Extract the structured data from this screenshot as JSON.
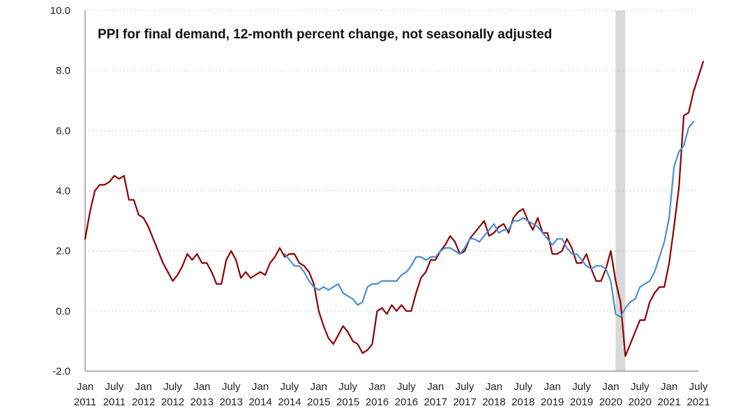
{
  "chart_data": {
    "type": "line",
    "title": "PPI for final demand, 12-month percent change, not seasonally adjusted",
    "xlabel": "",
    "ylabel": "",
    "ylim": [
      -2.0,
      10.0
    ],
    "y_ticks": [
      "-2.0",
      "0.0",
      "2.0",
      "4.0",
      "6.0",
      "8.0",
      "10.0"
    ],
    "x_start": "2011-01",
    "x_end": "2021-07",
    "x_ticks": [
      {
        "month": "2011-01",
        "line1": "Jan",
        "line2": "2011"
      },
      {
        "month": "2011-07",
        "line1": "July",
        "line2": "2011"
      },
      {
        "month": "2012-01",
        "line1": "Jan",
        "line2": "2012"
      },
      {
        "month": "2012-07",
        "line1": "July",
        "line2": "2012"
      },
      {
        "month": "2013-01",
        "line1": "Jan",
        "line2": "2013"
      },
      {
        "month": "2013-07",
        "line1": "July",
        "line2": "2013"
      },
      {
        "month": "2014-01",
        "line1": "Jan",
        "line2": "2014"
      },
      {
        "month": "2014-07",
        "line1": "July",
        "line2": "2014"
      },
      {
        "month": "2015-01",
        "line1": "Jan",
        "line2": "2015"
      },
      {
        "month": "2015-07",
        "line1": "July",
        "line2": "2015"
      },
      {
        "month": "2016-01",
        "line1": "Jan",
        "line2": "2016"
      },
      {
        "month": "2016-07",
        "line1": "July",
        "line2": "2016"
      },
      {
        "month": "2017-01",
        "line1": "Jan",
        "line2": "2017"
      },
      {
        "month": "2017-07",
        "line1": "July",
        "line2": "2017"
      },
      {
        "month": "2018-01",
        "line1": "Jan",
        "line2": "2018"
      },
      {
        "month": "2018-07",
        "line1": "July",
        "line2": "2018"
      },
      {
        "month": "2019-01",
        "line1": "Jan",
        "line2": "2019"
      },
      {
        "month": "2019-07",
        "line1": "July",
        "line2": "2019"
      },
      {
        "month": "2020-01",
        "line1": "Jan",
        "line2": "2020"
      },
      {
        "month": "2020-07",
        "line1": "July",
        "line2": "2020"
      },
      {
        "month": "2021-01",
        "line1": "Jan",
        "line2": "2021"
      },
      {
        "month": "2021-07",
        "line1": "July",
        "line2": "2021"
      }
    ],
    "grid": "horizontal dotted",
    "legend": "none",
    "recession_shade": {
      "start": "2020-02",
      "end": "2020-04",
      "color": "#d9d9d9"
    },
    "series": [
      {
        "color": "#8b0000",
        "start": "2011-01",
        "values": [
          2.4,
          3.3,
          4.0,
          4.2,
          4.2,
          4.3,
          4.5,
          4.4,
          4.5,
          3.7,
          3.7,
          3.2,
          3.1,
          2.8,
          2.4,
          2.0,
          1.6,
          1.3,
          1.0,
          1.2,
          1.5,
          1.9,
          1.7,
          1.9,
          1.6,
          1.6,
          1.3,
          0.9,
          0.9,
          1.7,
          2.0,
          1.7,
          1.1,
          1.3,
          1.1,
          1.2,
          1.3,
          1.2,
          1.6,
          1.8,
          2.1,
          1.8,
          1.9,
          1.9,
          1.6,
          1.5,
          1.3,
          0.9,
          0.0,
          -0.5,
          -0.9,
          -1.1,
          -0.8,
          -0.5,
          -0.7,
          -1.0,
          -1.1,
          -1.4,
          -1.3,
          -1.1,
          0.0,
          0.1,
          -0.1,
          0.2,
          0.0,
          0.2,
          0.0,
          0.0,
          0.6,
          1.1,
          1.3,
          1.7,
          1.7,
          2.0,
          2.2,
          2.5,
          2.3,
          1.9,
          2.0,
          2.4,
          2.6,
          2.8,
          3.0,
          2.5,
          2.6,
          2.8,
          2.9,
          2.6,
          3.1,
          3.3,
          3.4,
          3.0,
          2.7,
          3.1,
          2.6,
          2.6,
          1.9,
          1.9,
          2.0,
          2.4,
          2.1,
          1.6,
          1.6,
          1.9,
          1.4,
          1.0,
          1.0,
          1.4,
          2.0,
          1.0,
          0.3,
          -1.5,
          -1.1,
          -0.7,
          -0.3,
          -0.3,
          0.3,
          0.6,
          0.8,
          0.8,
          1.6,
          2.8,
          4.1,
          6.5,
          6.6,
          7.3,
          7.8,
          8.3
        ]
      },
      {
        "color": "#4a8fd0",
        "start": "2014-06",
        "values": [
          1.9,
          1.7,
          1.5,
          1.5,
          1.3,
          1.0,
          0.8,
          0.7,
          0.8,
          0.7,
          0.8,
          0.9,
          0.6,
          0.5,
          0.4,
          0.2,
          0.3,
          0.8,
          0.9,
          0.9,
          1.0,
          1.0,
          1.0,
          1.0,
          1.2,
          1.3,
          1.5,
          1.8,
          1.8,
          1.7,
          1.8,
          1.8,
          2.0,
          2.1,
          2.1,
          2.0,
          1.9,
          2.1,
          2.4,
          2.4,
          2.3,
          2.5,
          2.7,
          2.9,
          2.6,
          2.7,
          2.7,
          3.0,
          3.0,
          3.1,
          3.0,
          2.9,
          2.8,
          2.6,
          2.4,
          2.2,
          2.4,
          2.4,
          2.1,
          1.9,
          1.9,
          1.7,
          1.5,
          1.4,
          1.5,
          1.5,
          1.4,
          1.0,
          -0.1,
          -0.2,
          0.1,
          0.3,
          0.4,
          0.8,
          0.9,
          1.0,
          1.3,
          1.8,
          2.3,
          3.1,
          4.8,
          5.3,
          5.5,
          6.1,
          6.3
        ]
      }
    ]
  }
}
